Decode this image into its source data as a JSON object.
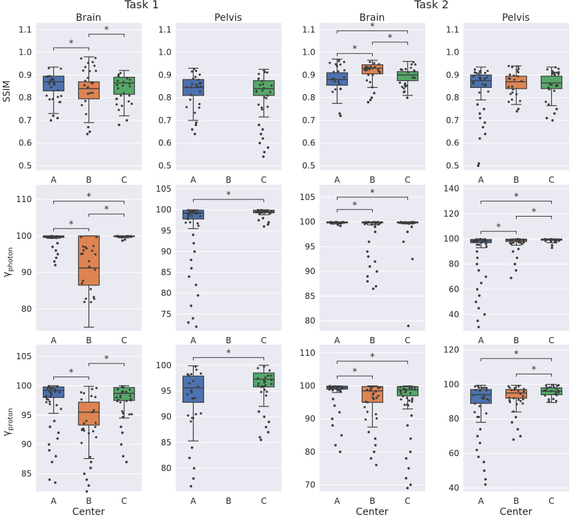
{
  "figure": {
    "task_titles": [
      "Task 1",
      "Task 2"
    ],
    "region_labels": [
      "Brain",
      "Pelvis",
      "Brain",
      "Pelvis"
    ],
    "row_ylabels": [
      {
        "base": "SSIM",
        "sub": ""
      },
      {
        "base": "γ",
        "sub": "photon"
      },
      {
        "base": "γ",
        "sub": "proton"
      }
    ],
    "xlabel": "Center",
    "categories": [
      "A",
      "B",
      "C"
    ]
  },
  "chart_data": [
    {
      "type": "box",
      "row": 0,
      "col": 0,
      "task": "Task 1",
      "region": "Brain",
      "metric": "SSIM",
      "ylim": [
        0.48,
        1.13
      ],
      "yticks": [
        0.5,
        0.6,
        0.7,
        0.8,
        0.9,
        1.0,
        1.1
      ],
      "ytick_labels": [
        "0.5",
        "0.6",
        "0.7",
        "0.8",
        "0.9",
        "1.0",
        "1.1"
      ],
      "categories": [
        "A",
        "B",
        "C"
      ],
      "boxes": [
        {
          "center": "A",
          "whislo": 0.73,
          "q1": 0.83,
          "med": 0.87,
          "q3": 0.895,
          "whishi": 0.935,
          "fliers": [
            0.7,
            0.71,
            0.72
          ]
        },
        {
          "center": "B",
          "whislo": 0.69,
          "q1": 0.795,
          "med": 0.84,
          "q3": 0.87,
          "whishi": 0.98,
          "fliers": [
            0.64,
            0.65,
            0.67
          ]
        },
        {
          "center": "C",
          "whislo": 0.72,
          "q1": 0.815,
          "med": 0.865,
          "q3": 0.89,
          "whishi": 0.92,
          "fliers": [
            0.68,
            0.7
          ]
        }
      ],
      "significance": [
        {
          "from": "A",
          "to": "B",
          "label": "*",
          "y": 1.02
        },
        {
          "from": "B",
          "to": "C",
          "label": "*",
          "y": 1.08
        }
      ]
    },
    {
      "type": "box",
      "row": 0,
      "col": 1,
      "task": "Task 1",
      "region": "Pelvis",
      "metric": "SSIM",
      "ylim": [
        0.48,
        1.13
      ],
      "yticks": [
        0.5,
        0.6,
        0.7,
        0.8,
        0.9,
        1.0,
        1.1
      ],
      "ytick_labels": [
        "0.5",
        "0.6",
        "0.7",
        "0.8",
        "0.9",
        "1.0",
        "1.1"
      ],
      "categories": [
        "A",
        "B",
        "C"
      ],
      "boxes": [
        {
          "center": "A",
          "whislo": 0.7,
          "q1": 0.81,
          "med": 0.845,
          "q3": 0.88,
          "whishi": 0.93,
          "fliers": [
            0.64,
            0.66,
            0.68,
            0.69
          ]
        },
        {
          "center": "C",
          "whislo": 0.715,
          "q1": 0.81,
          "med": 0.84,
          "q3": 0.875,
          "whishi": 0.925,
          "fliers": [
            0.54,
            0.56,
            0.58,
            0.6,
            0.62,
            0.64,
            0.66,
            0.68
          ]
        }
      ],
      "significance": []
    },
    {
      "type": "box",
      "row": 0,
      "col": 2,
      "task": "Task 2",
      "region": "Brain",
      "metric": "SSIM",
      "ylim": [
        0.48,
        1.13
      ],
      "yticks": [
        0.5,
        0.6,
        0.7,
        0.8,
        0.9,
        1.0,
        1.1
      ],
      "ytick_labels": [
        "0.5",
        "0.6",
        "0.7",
        "0.8",
        "0.9",
        "1.0",
        "1.1"
      ],
      "categories": [
        "A",
        "B",
        "C"
      ],
      "boxes": [
        {
          "center": "A",
          "whislo": 0.775,
          "q1": 0.855,
          "med": 0.88,
          "q3": 0.91,
          "whishi": 0.97,
          "fliers": [
            0.72,
            0.73
          ]
        },
        {
          "center": "B",
          "whislo": 0.845,
          "q1": 0.905,
          "med": 0.93,
          "q3": 0.945,
          "whishi": 0.965,
          "fliers": [
            0.78,
            0.79,
            0.8,
            0.82
          ]
        },
        {
          "center": "C",
          "whislo": 0.81,
          "q1": 0.875,
          "med": 0.9,
          "q3": 0.915,
          "whishi": 0.96,
          "fliers": [
            0.8
          ]
        }
      ],
      "significance": [
        {
          "from": "A",
          "to": "B",
          "label": "*",
          "y": 0.995
        },
        {
          "from": "B",
          "to": "C",
          "label": "*",
          "y": 1.045
        },
        {
          "from": "A",
          "to": "C",
          "label": "*",
          "y": 1.095
        }
      ]
    },
    {
      "type": "box",
      "row": 0,
      "col": 3,
      "task": "Task 2",
      "region": "Pelvis",
      "metric": "SSIM",
      "ylim": [
        0.48,
        1.13
      ],
      "yticks": [
        0.5,
        0.6,
        0.7,
        0.8,
        0.9,
        1.0,
        1.1
      ],
      "ytick_labels": [
        "0.5",
        "0.6",
        "0.7",
        "0.8",
        "0.9",
        "1.0",
        "1.1"
      ],
      "categories": [
        "A",
        "B",
        "C"
      ],
      "boxes": [
        {
          "center": "A",
          "whislo": 0.79,
          "q1": 0.845,
          "med": 0.875,
          "q3": 0.9,
          "whishi": 0.935,
          "fliers": [
            0.5,
            0.51,
            0.62,
            0.64,
            0.67,
            0.69,
            0.71,
            0.73,
            0.75,
            0.77
          ]
        },
        {
          "center": "B",
          "whislo": 0.77,
          "q1": 0.84,
          "med": 0.87,
          "q3": 0.895,
          "whishi": 0.94,
          "fliers": [
            0.74,
            0.75
          ]
        },
        {
          "center": "C",
          "whislo": 0.765,
          "q1": 0.84,
          "med": 0.865,
          "q3": 0.895,
          "whishi": 0.935,
          "fliers": [
            0.7,
            0.71,
            0.73,
            0.75
          ]
        }
      ],
      "significance": []
    },
    {
      "type": "box",
      "row": 1,
      "col": 0,
      "task": "Task 1",
      "region": "Brain",
      "metric": "gamma_photon",
      "ylim": [
        74,
        114
      ],
      "yticks": [
        80,
        90,
        100,
        110
      ],
      "ytick_labels": [
        "80",
        "90",
        "100",
        "110"
      ],
      "categories": [
        "A",
        "B",
        "C"
      ],
      "boxes": [
        {
          "center": "A",
          "whislo": 99.3,
          "q1": 99.6,
          "med": 99.8,
          "q3": 100,
          "whishi": 100,
          "fliers": [
            92,
            93,
            94,
            95,
            96,
            97,
            98
          ]
        },
        {
          "center": "B",
          "whislo": 75,
          "q1": 86.5,
          "med": 91.2,
          "q3": 100,
          "whishi": 100,
          "fliers": []
        },
        {
          "center": "C",
          "whislo": 99.5,
          "q1": 99.8,
          "med": 99.9,
          "q3": 100,
          "whishi": 100,
          "fliers": [
            99,
            98.7
          ]
        }
      ],
      "significance": [
        {
          "from": "A",
          "to": "B",
          "label": "*",
          "y": 102
        },
        {
          "from": "B",
          "to": "C",
          "label": "*",
          "y": 106
        },
        {
          "from": "A",
          "to": "C",
          "label": "*",
          "y": 109.5
        }
      ]
    },
    {
      "type": "box",
      "row": 1,
      "col": 1,
      "task": "Task 1",
      "region": "Pelvis",
      "metric": "gamma_photon",
      "ylim": [
        71,
        106
      ],
      "yticks": [
        75,
        80,
        85,
        90,
        95,
        100,
        105
      ],
      "ytick_labels": [
        "75",
        "80",
        "85",
        "90",
        "95",
        "100",
        "105"
      ],
      "categories": [
        "A",
        "B",
        "C"
      ],
      "boxes": [
        {
          "center": "A",
          "whislo": 95.5,
          "q1": 97.8,
          "med": 99.2,
          "q3": 99.9,
          "whishi": 100,
          "fliers": [
            72,
            73,
            74,
            77,
            79.5,
            82,
            84,
            86,
            88,
            90,
            92,
            94
          ]
        },
        {
          "center": "C",
          "whislo": 98.8,
          "q1": 99.3,
          "med": 99.6,
          "q3": 99.9,
          "whishi": 100,
          "fliers": [
            96,
            96.5,
            97,
            97.5,
            98
          ]
        }
      ],
      "significance": [
        {
          "from": "A",
          "to": "C",
          "label": "*",
          "y": 102.5
        }
      ]
    },
    {
      "type": "box",
      "row": 1,
      "col": 2,
      "task": "Task 2",
      "region": "Brain",
      "metric": "gamma_photon",
      "ylim": [
        78,
        107.5
      ],
      "yticks": [
        80,
        85,
        90,
        95,
        100,
        105
      ],
      "ytick_labels": [
        "80",
        "85",
        "90",
        "95",
        "100",
        "105"
      ],
      "categories": [
        "A",
        "B",
        "C"
      ],
      "boxes": [
        {
          "center": "A",
          "whislo": 99.6,
          "q1": 99.8,
          "med": 99.9,
          "q3": 100,
          "whishi": 100,
          "fliers": [
            99.2,
            99.4
          ]
        },
        {
          "center": "B",
          "whislo": 99.4,
          "q1": 99.8,
          "med": 99.9,
          "q3": 100,
          "whishi": 100,
          "fliers": [
            86.5,
            87,
            88,
            89,
            90,
            91,
            92,
            93,
            94,
            96,
            98,
            99
          ]
        },
        {
          "center": "C",
          "whislo": 99.6,
          "q1": 99.8,
          "med": 99.9,
          "q3": 100,
          "whishi": 100,
          "fliers": [
            79,
            92.5,
            96,
            98,
            99
          ]
        }
      ],
      "significance": [
        {
          "from": "A",
          "to": "B",
          "label": "*",
          "y": 102.5
        },
        {
          "from": "A",
          "to": "C",
          "label": "*",
          "y": 105
        }
      ]
    },
    {
      "type": "box",
      "row": 1,
      "col": 3,
      "task": "Task 2",
      "region": "Pelvis",
      "metric": "gamma_photon",
      "ylim": [
        27,
        143
      ],
      "yticks": [
        40,
        60,
        80,
        100,
        120,
        140
      ],
      "ytick_labels": [
        "40",
        "60",
        "80",
        "100",
        "120",
        "140"
      ],
      "categories": [
        "A",
        "B",
        "C"
      ],
      "boxes": [
        {
          "center": "A",
          "whislo": 93,
          "q1": 97,
          "med": 98.5,
          "q3": 99.6,
          "whishi": 100,
          "fliers": [
            30,
            35,
            40,
            45,
            50,
            55,
            60,
            65,
            70,
            75,
            80,
            85,
            90
          ]
        },
        {
          "center": "B",
          "whislo": 95,
          "q1": 98,
          "med": 99,
          "q3": 99.8,
          "whishi": 100,
          "fliers": [
            69,
            75,
            80,
            85,
            90,
            92
          ]
        },
        {
          "center": "C",
          "whislo": 97,
          "q1": 99,
          "med": 99.5,
          "q3": 99.9,
          "whishi": 100,
          "fliers": [
            93,
            95
          ]
        }
      ],
      "significance": [
        {
          "from": "A",
          "to": "B",
          "label": "*",
          "y": 106
        },
        {
          "from": "B",
          "to": "C",
          "label": "*",
          "y": 118
        },
        {
          "from": "A",
          "to": "C",
          "label": "*",
          "y": 130
        }
      ]
    },
    {
      "type": "box",
      "row": 2,
      "col": 0,
      "task": "Task 1",
      "region": "Brain",
      "metric": "gamma_proton",
      "ylim": [
        82,
        107
      ],
      "yticks": [
        85,
        90,
        95,
        100,
        105
      ],
      "ytick_labels": [
        "85",
        "90",
        "95",
        "100",
        "105"
      ],
      "categories": [
        "A",
        "B",
        "C"
      ],
      "boxes": [
        {
          "center": "A",
          "whislo": 95.3,
          "q1": 98,
          "med": 99.2,
          "q3": 99.8,
          "whishi": 100,
          "fliers": [
            83.5,
            84,
            87,
            88,
            89,
            90,
            91,
            92,
            93,
            94
          ]
        },
        {
          "center": "B",
          "whislo": 87.6,
          "q1": 93.3,
          "med": 95.5,
          "q3": 97.2,
          "whishi": 99.9,
          "fliers": [
            82,
            83,
            84,
            85,
            86,
            87
          ]
        },
        {
          "center": "C",
          "whislo": 94.5,
          "q1": 97.5,
          "med": 98.7,
          "q3": 99.7,
          "whishi": 100,
          "fliers": [
            87,
            88,
            90,
            92,
            93
          ]
        }
      ],
      "significance": [
        {
          "from": "A",
          "to": "B",
          "label": "*",
          "y": 101.5
        },
        {
          "from": "B",
          "to": "C",
          "label": "*",
          "y": 103.8
        }
      ]
    },
    {
      "type": "box",
      "row": 2,
      "col": 1,
      "task": "Task 1",
      "region": "Pelvis",
      "metric": "gamma_proton",
      "ylim": [
        75.5,
        104
      ],
      "yticks": [
        80,
        85,
        90,
        95,
        100
      ],
      "ytick_labels": [
        "80",
        "85",
        "90",
        "95",
        "100"
      ],
      "categories": [
        "A",
        "B",
        "C"
      ],
      "boxes": [
        {
          "center": "A",
          "whislo": 85.3,
          "q1": 92.8,
          "med": 95.6,
          "q3": 97.9,
          "whishi": 99.9,
          "fliers": [
            76.5,
            78,
            80,
            82,
            84
          ]
        },
        {
          "center": "C",
          "whislo": 92,
          "q1": 95.8,
          "med": 97.3,
          "q3": 98.5,
          "whishi": 100,
          "fliers": [
            85.5,
            86,
            87,
            88,
            89,
            90,
            91
          ]
        }
      ],
      "significance": [
        {
          "from": "A",
          "to": "C",
          "label": "*",
          "y": 101.5
        }
      ]
    },
    {
      "type": "box",
      "row": 2,
      "col": 2,
      "task": "Task 2",
      "region": "Brain",
      "metric": "gamma_proton",
      "ylim": [
        68,
        112.5
      ],
      "yticks": [
        70,
        80,
        90,
        100,
        110
      ],
      "ytick_labels": [
        "70",
        "80",
        "90",
        "100",
        "110"
      ],
      "categories": [
        "A",
        "B",
        "C"
      ],
      "boxes": [
        {
          "center": "A",
          "whislo": 98,
          "q1": 99,
          "med": 99.6,
          "q3": 99.9,
          "whishi": 100,
          "fliers": [
            80,
            82,
            85,
            88,
            90,
            92,
            94,
            96
          ]
        },
        {
          "center": "B",
          "whislo": 87.5,
          "q1": 95,
          "med": 98.5,
          "q3": 99.8,
          "whishi": 100,
          "fliers": [
            76,
            78,
            80,
            82,
            84,
            86
          ]
        },
        {
          "center": "C",
          "whislo": 93,
          "q1": 97,
          "med": 98.8,
          "q3": 99.8,
          "whishi": 100,
          "fliers": [
            69,
            70,
            72,
            75,
            78,
            80,
            84,
            88,
            91
          ]
        }
      ],
      "significance": [
        {
          "from": "A",
          "to": "B",
          "label": "*",
          "y": 103
        },
        {
          "from": "A",
          "to": "C",
          "label": "*",
          "y": 107.5
        }
      ]
    },
    {
      "type": "box",
      "row": 2,
      "col": 3,
      "task": "Task 2",
      "region": "Pelvis",
      "metric": "gamma_proton",
      "ylim": [
        38,
        123
      ],
      "yticks": [
        40,
        60,
        80,
        100,
        120
      ],
      "ytick_labels": [
        "40",
        "60",
        "80",
        "100",
        "120"
      ],
      "categories": [
        "A",
        "B",
        "C"
      ],
      "boxes": [
        {
          "center": "A",
          "whislo": 78,
          "q1": 89,
          "med": 94,
          "q3": 97,
          "whishi": 99.5,
          "fliers": [
            42,
            45,
            50,
            55,
            58,
            62,
            66,
            70,
            74
          ]
        },
        {
          "center": "B",
          "whislo": 84,
          "q1": 92,
          "med": 95,
          "q3": 97,
          "whishi": 99.5,
          "fliers": [
            68,
            70,
            74,
            78,
            81
          ]
        },
        {
          "center": "C",
          "whislo": 89.5,
          "q1": 94,
          "med": 96,
          "q3": 98,
          "whishi": 100,
          "fliers": [
            90
          ]
        }
      ],
      "significance": [
        {
          "from": "B",
          "to": "C",
          "label": "*",
          "y": 106
        },
        {
          "from": "A",
          "to": "C",
          "label": "*",
          "y": 115
        }
      ]
    }
  ],
  "colors": {
    "A": "#4c72b0",
    "B": "#dd8452",
    "C": "#55a868",
    "panel_bg": "#eaeaf2",
    "grid": "#ffffff",
    "dots": "#3d3d3d",
    "text": "#262626"
  }
}
